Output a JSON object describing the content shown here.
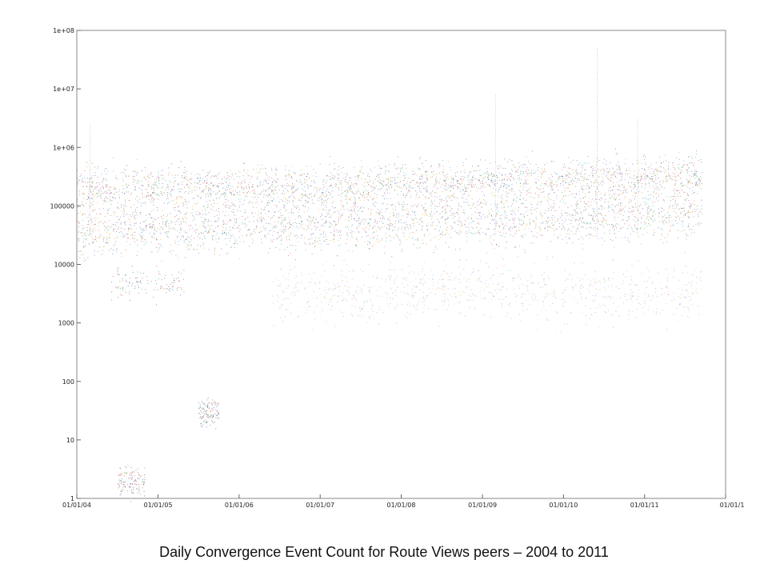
{
  "caption": "Daily Convergence Event Count for Route Views peers – 2004 to 2011",
  "chart_data": {
    "type": "scatter",
    "title": "",
    "xlabel": "",
    "ylabel": "",
    "y_scale": "log",
    "ylim": [
      1,
      100000000
    ],
    "xlim": [
      "2004-01-01",
      "2012-01-01"
    ],
    "grid": false,
    "x_ticks": [
      "01/01/04",
      "01/01/05",
      "01/01/06",
      "01/01/07",
      "01/01/08",
      "01/01/09",
      "01/01/10",
      "01/01/11",
      "01/01/1"
    ],
    "x_tick_dates": [
      "2004-01-01",
      "2005-01-01",
      "2006-01-01",
      "2007-01-01",
      "2008-01-01",
      "2009-01-01",
      "2010-01-01",
      "2011-01-01",
      "2012-01-01"
    ],
    "y_ticks": [
      "1",
      "10",
      "100",
      "1000",
      "10000",
      "100000",
      "1e+06",
      "1e+07",
      "1e+08"
    ],
    "y_tick_values": [
      1,
      10,
      100,
      1000,
      10000,
      100000,
      1000000,
      10000000,
      100000000
    ],
    "series_colors": [
      "#c0392b",
      "#2c3e9e",
      "#2e8b3a",
      "#8e44ad",
      "#d4a017",
      "#17a2b8",
      "#e67e22",
      "#555555"
    ],
    "data_end": "2011-09-15",
    "bands": [
      {
        "x": [
          "2004-01-01",
          "2006-01-01",
          "2011-09-15"
        ],
        "center": [
          40000,
          45000,
          80000
        ],
        "spread_decades": 0.45
      },
      {
        "x": [
          "2004-01-01",
          "2007-01-01",
          "2011-09-15"
        ],
        "center": [
          200000,
          220000,
          350000
        ],
        "spread_decades": 0.35
      },
      {
        "x": [
          "2006-06-01",
          "2009-01-01",
          "2011-09-15"
        ],
        "center": [
          3000,
          4000,
          3000
        ],
        "spread_decades": 0.5
      }
    ],
    "low_clusters": [
      {
        "x": [
          "2004-07-01",
          "2004-11-01"
        ],
        "y": 2
      },
      {
        "x": [
          "2004-06-01",
          "2005-05-01"
        ],
        "y": 5000
      },
      {
        "x": [
          "2005-07-01",
          "2005-10-01"
        ],
        "y": 30
      }
    ],
    "spikes": [
      {
        "x": "2004-03-01",
        "y": 2500000
      },
      {
        "x": "2009-03-01",
        "y": 8000000
      },
      {
        "x": "2010-06-01",
        "y": 50000000
      },
      {
        "x": "2010-12-01",
        "y": 3000000
      }
    ]
  }
}
